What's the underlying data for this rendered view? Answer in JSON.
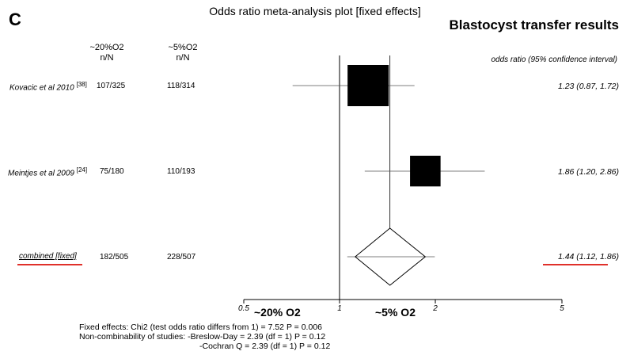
{
  "panel_label": "C",
  "colors": {
    "box": "#000000",
    "line": "#000000",
    "highlight": "#e0302a"
  },
  "chart_data": {
    "type": "forest",
    "title": "Odds ratio meta-analysis plot [fixed effects]",
    "subtitle": "Blastocyst transfer results",
    "column_headers": {
      "group_a": {
        "name": "~20%O2",
        "unit": "n/N"
      },
      "group_b": {
        "name": "~5%O2",
        "unit": "n/N"
      },
      "ci": "odds ratio (95% confidence interval)"
    },
    "studies": [
      {
        "name": "Kovacic et al 2010",
        "ref": "[38]",
        "a": "107/325",
        "b": "118/314",
        "or": 1.23,
        "lo": 0.87,
        "hi": 1.72,
        "ci_text": "1.23 (0.87, 1.72)",
        "weight": 1.0
      },
      {
        "name": "Meintjes et al 2009",
        "ref": "[24]",
        "a": "75/180",
        "b": "110/193",
        "or": 1.86,
        "lo": 1.2,
        "hi": 2.86,
        "ci_text": "1.86 (1.20, 2.86)",
        "weight": 0.55
      }
    ],
    "combined": {
      "name": "combined [fixed]",
      "a": "182/505",
      "b": "228/507",
      "or": 1.44,
      "lo": 1.12,
      "hi": 1.86,
      "ci_text": "1.44 (1.12, 1.86)"
    },
    "x_axis": {
      "scale": "log",
      "ticks": [
        0.5,
        1,
        2,
        5
      ],
      "tick_labels": [
        "0.5",
        "1",
        "2",
        "5"
      ],
      "xlim": [
        0.5,
        5
      ],
      "reference_line": 1
    },
    "favours_left": "~20% O2",
    "favours_right": "~5% O2"
  },
  "stats": {
    "line1": "Fixed effects: Chi2 (test odds ratio differs from 1) = 7.52  P = 0.006",
    "line2": "Non-combinability of studies: -Breslow-Day = 2.39  (df = 1)  P = 0.12",
    "line3": "-Cochran Q = 2.39  (df = 1)  P = 0.12"
  }
}
